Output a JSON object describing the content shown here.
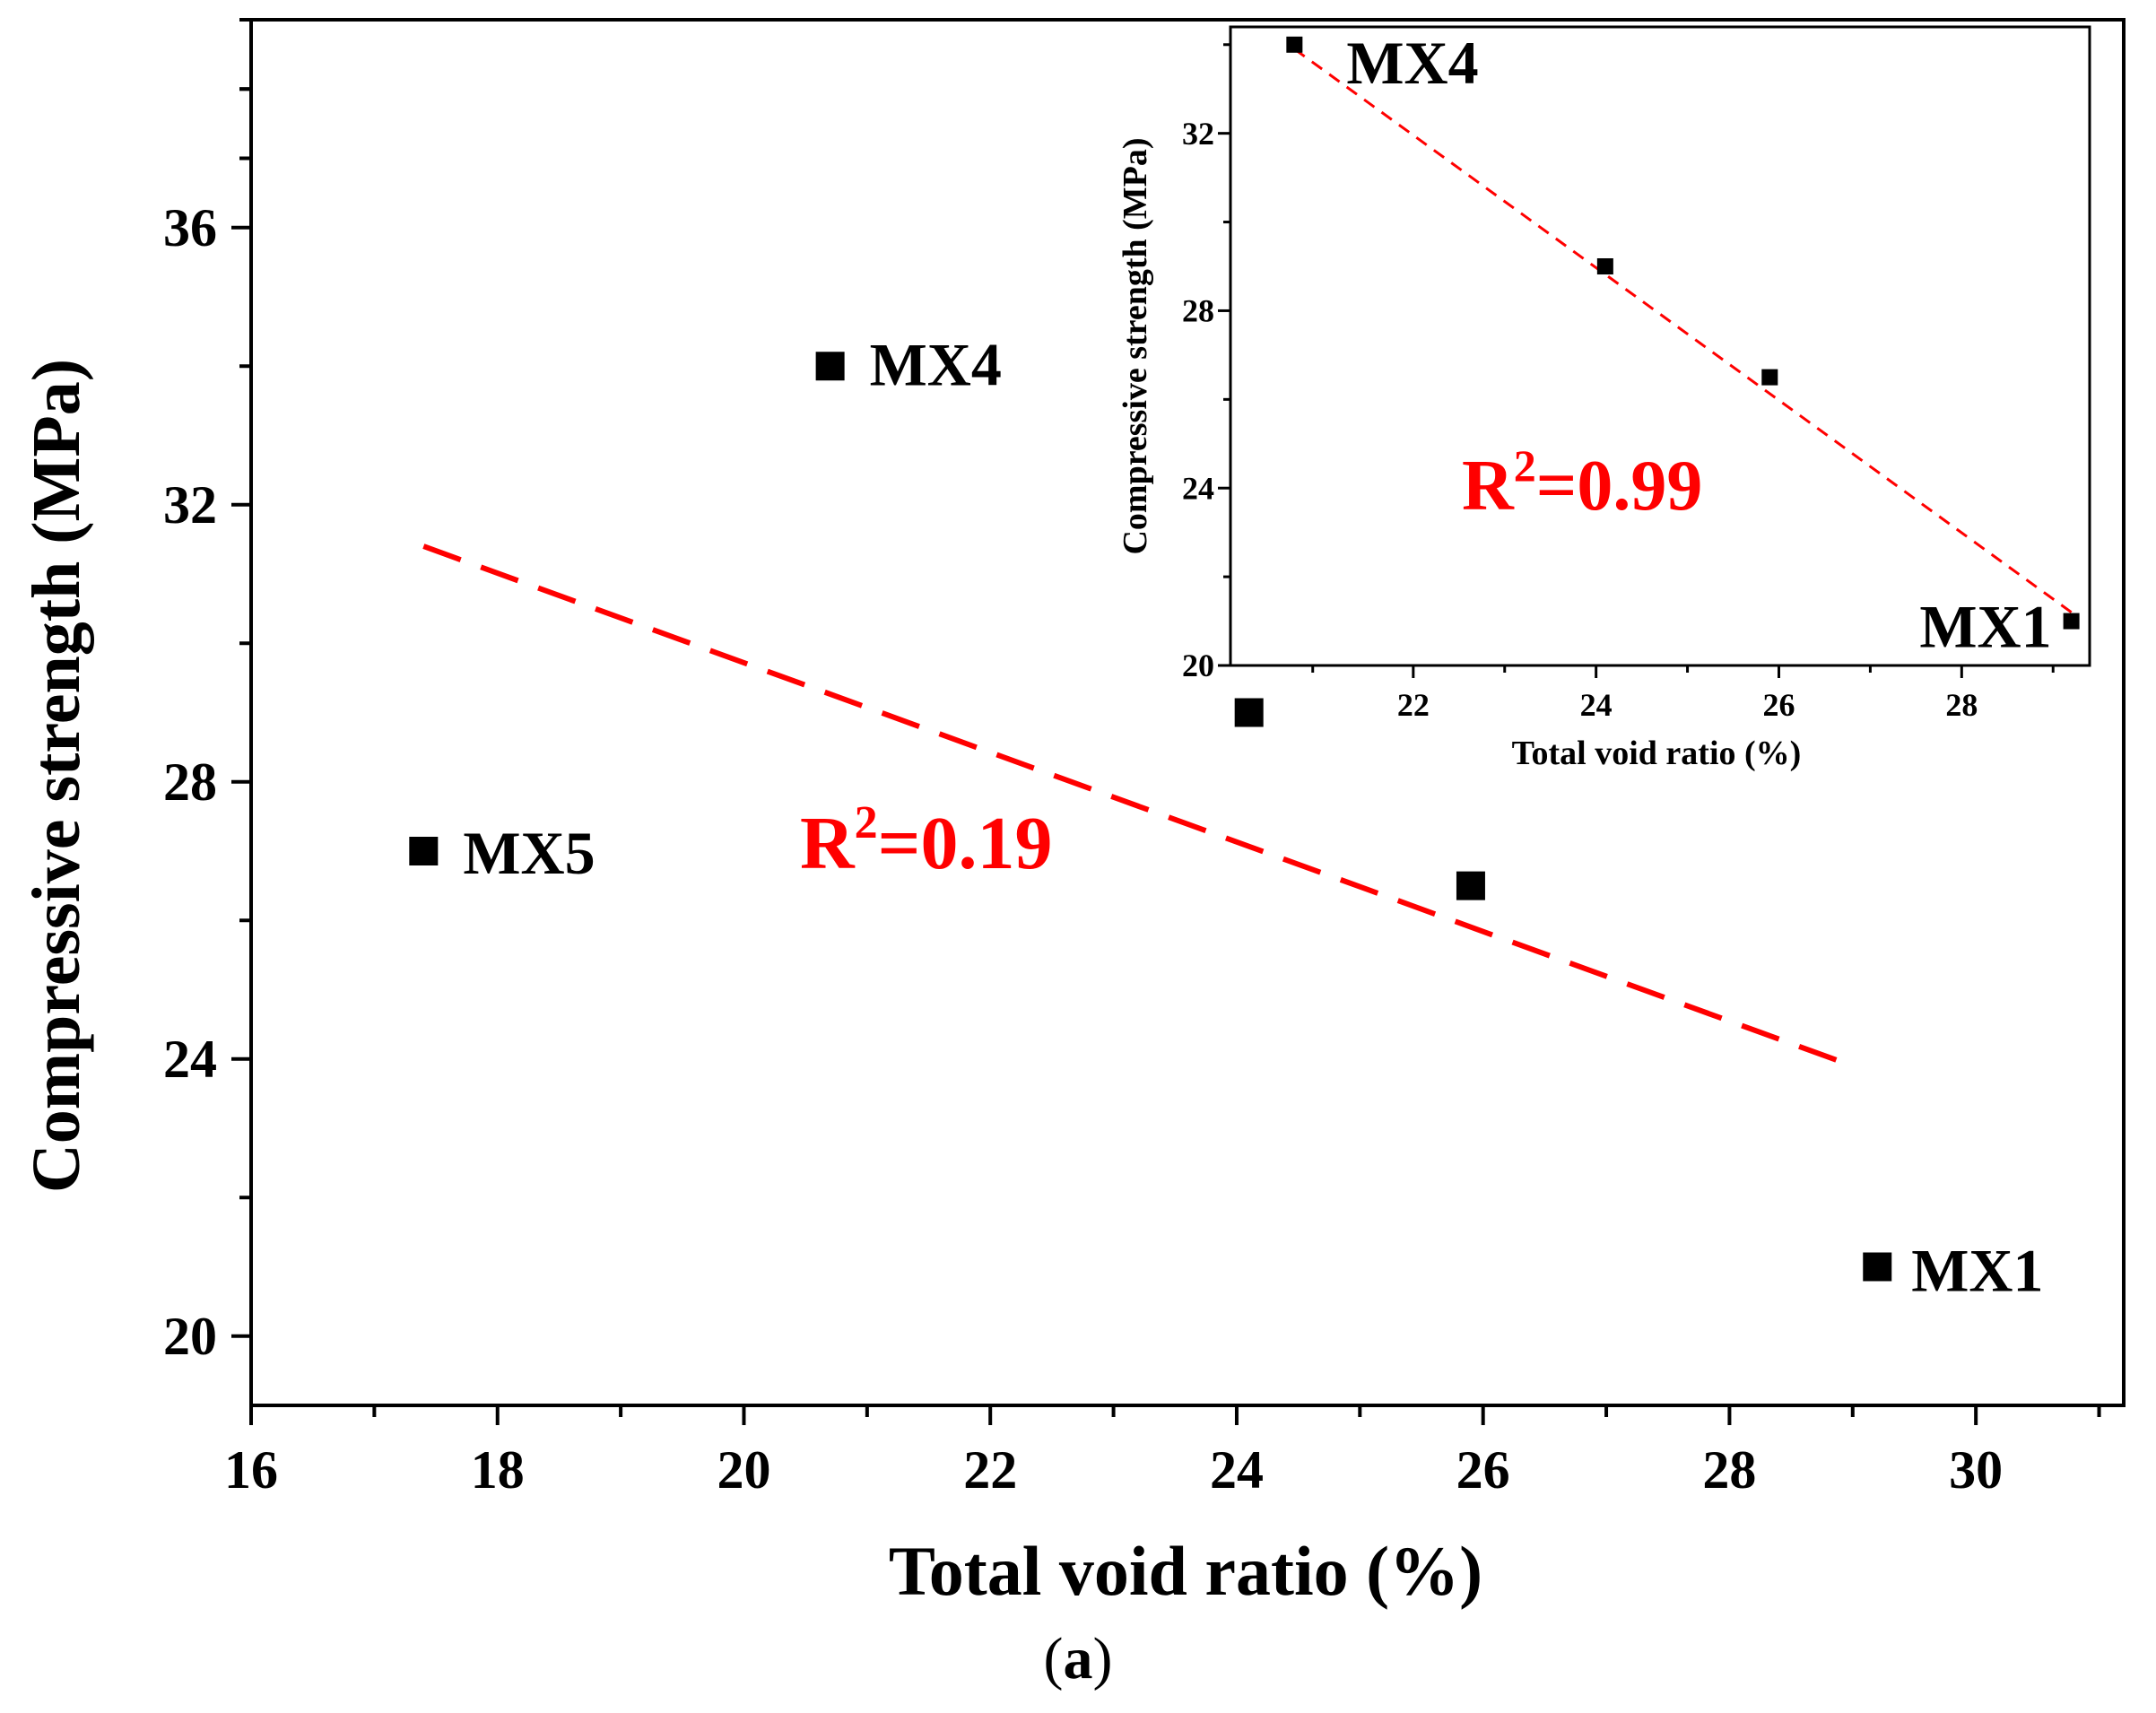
{
  "chart_data": [
    {
      "type": "scatter",
      "title": "",
      "xlabel": "Total void ratio (%)",
      "ylabel": "Compressive strength (MPa)",
      "xlim": [
        16,
        31.2
      ],
      "ylim": [
        19,
        39
      ],
      "xticks": [
        "16",
        "18",
        "20",
        "22",
        "24",
        "26",
        "28",
        "30"
      ],
      "yticks": [
        "20",
        "24",
        "28",
        "32",
        "36"
      ],
      "points": [
        {
          "x": 20.7,
          "y": 34.0,
          "label": "MX4"
        },
        {
          "x": 17.4,
          "y": 27.0,
          "label": "MX5"
        },
        {
          "x": 24.1,
          "y": 29.0,
          "label": ""
        },
        {
          "x": 25.9,
          "y": 26.5,
          "label": ""
        },
        {
          "x": 29.2,
          "y": 21.0,
          "label": "MX1"
        }
      ],
      "fit_line": {
        "x": [
          17.4,
          29.0
        ],
        "y": [
          31.4,
          23.9
        ],
        "style": "dashed",
        "color": "#ff0000"
      },
      "annotation": {
        "base": "R",
        "sup": "2",
        "rest": "=0.19"
      }
    },
    {
      "type": "scatter",
      "title": "",
      "inset": true,
      "xlabel": "Total void ratio (%)",
      "ylabel": "Compressive strength (MPa)",
      "xlim": [
        20.0,
        29.4
      ],
      "ylim": [
        20,
        34.4
      ],
      "xticks": [
        "22",
        "24",
        "26",
        "28"
      ],
      "yticks": [
        "20",
        "24",
        "28",
        "32"
      ],
      "points": [
        {
          "x": 20.7,
          "y": 34.0,
          "label": "MX4"
        },
        {
          "x": 24.1,
          "y": 29.0,
          "label": ""
        },
        {
          "x": 25.9,
          "y": 26.5,
          "label": ""
        },
        {
          "x": 29.2,
          "y": 21.0,
          "label": "MX1"
        }
      ],
      "fit_line": {
        "x": [
          20.7,
          29.2
        ],
        "y": [
          33.9,
          21.2
        ],
        "style": "dashed",
        "color": "#ff0000"
      },
      "annotation": {
        "base": "R",
        "sup": "2",
        "rest": "=0.99"
      }
    }
  ],
  "caption": {
    "open": "(",
    "letter": "a",
    "close": ")"
  },
  "colors": {
    "fit": "#ff0000",
    "marker": "#000000",
    "axis": "#000000"
  }
}
